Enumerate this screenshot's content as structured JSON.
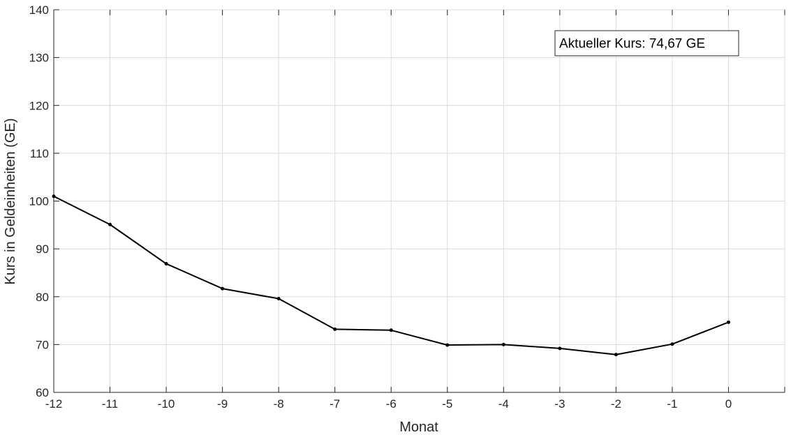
{
  "chart_data": {
    "type": "line",
    "xlabel": "Monat",
    "ylabel": "Kurs in Geldeinheiten (GE)",
    "xlim": [
      -12,
      1
    ],
    "ylim": [
      60,
      140
    ],
    "x_ticks": [
      -12,
      -11,
      -10,
      -9,
      -8,
      -7,
      -6,
      -5,
      -4,
      -3,
      -2,
      -1,
      0
    ],
    "y_ticks": [
      60,
      70,
      80,
      90,
      100,
      110,
      120,
      130,
      140
    ],
    "grid": true,
    "annotation": "Aktueller Kurs: 74,67 GE",
    "series": [
      {
        "color": "#000000",
        "x": [
          -12,
          -11,
          -10,
          -9,
          -8,
          -7,
          -6,
          -5,
          -4,
          -3,
          -2,
          -1,
          0
        ],
        "y": [
          101.0,
          95.1,
          86.9,
          81.7,
          79.6,
          73.2,
          73.0,
          69.9,
          70.0,
          69.2,
          67.9,
          70.1,
          74.67
        ]
      }
    ]
  }
}
